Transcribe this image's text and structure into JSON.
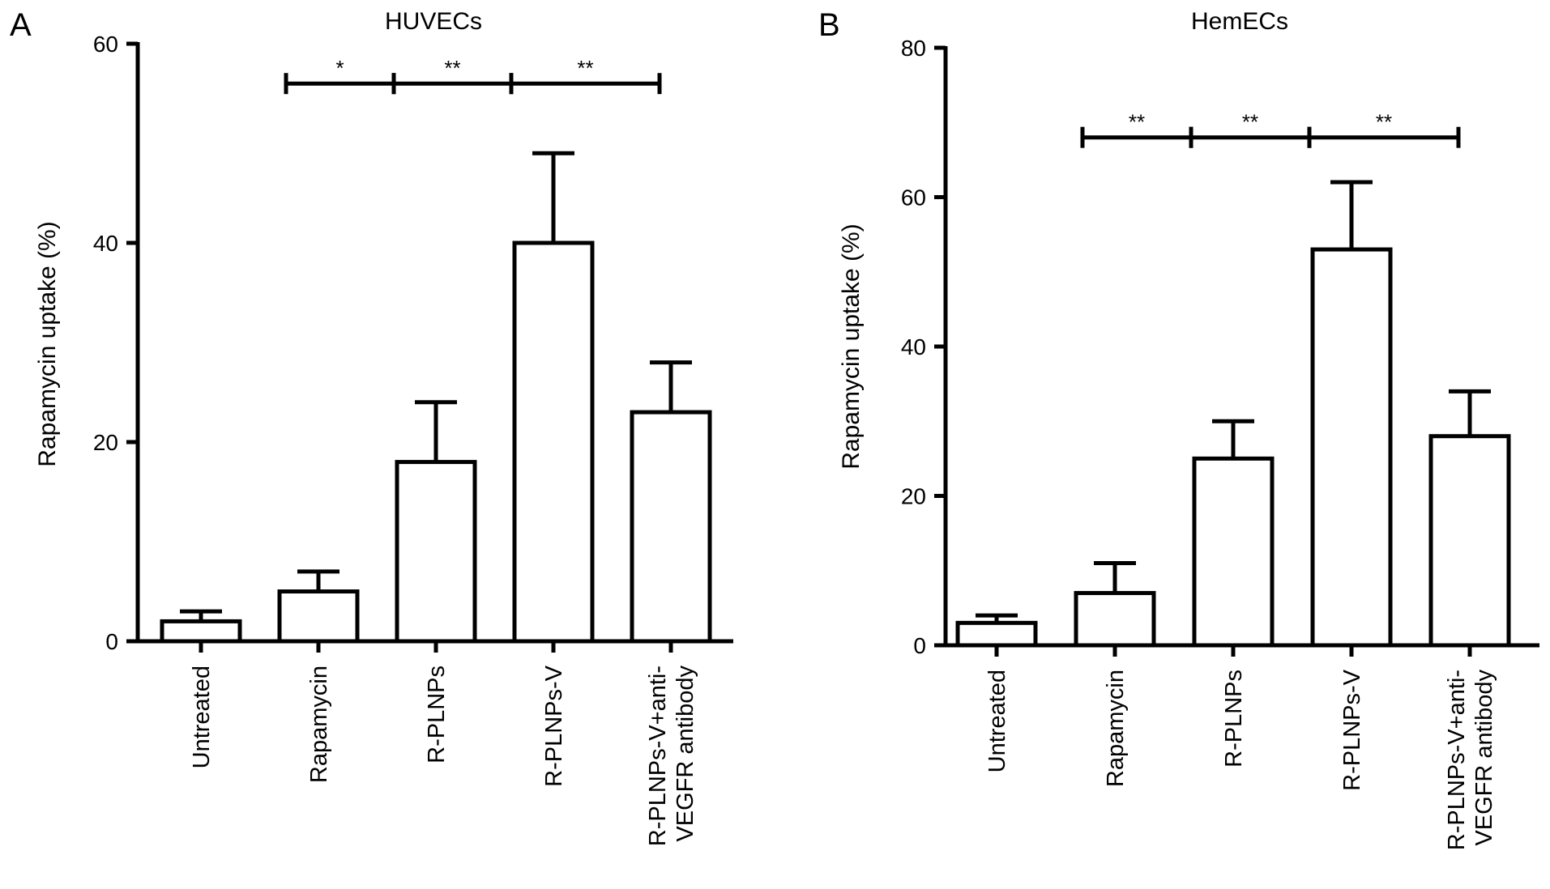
{
  "chart_data": [
    {
      "panel": "A",
      "type": "bar",
      "title": "HUVECs",
      "xlabel": "",
      "ylabel": "Rapamycin uptake (%)",
      "ylim": [
        0,
        60
      ],
      "yticks": [
        0,
        20,
        40,
        60
      ],
      "categories": [
        [
          "Untreated"
        ],
        [
          "Rapamycin"
        ],
        [
          "R-PLNPs"
        ],
        [
          "R-PLNPs-V"
        ],
        [
          "R-PLNPs-V+anti-",
          "VEGFR antibody"
        ]
      ],
      "values": [
        2,
        5,
        18,
        40,
        23
      ],
      "error_upper": [
        3,
        7,
        24,
        49,
        28
      ],
      "significance": [
        {
          "from": 1,
          "to": 2,
          "label": "*",
          "y": 56
        },
        {
          "from": 2,
          "to": 3,
          "label": "**",
          "y": 56
        },
        {
          "from": 3,
          "to": 4,
          "label": "**",
          "y": 56
        }
      ],
      "grid": false
    },
    {
      "panel": "B",
      "type": "bar",
      "title": "HemECs",
      "xlabel": "",
      "ylabel": "Rapamycin uptake (%)",
      "ylim": [
        0,
        80
      ],
      "yticks": [
        0,
        20,
        40,
        60,
        80
      ],
      "categories": [
        [
          "Untreated"
        ],
        [
          "Rapamycin"
        ],
        [
          "R-PLNPs"
        ],
        [
          "R-PLNPs-V"
        ],
        [
          "R-PLNPs-V+anti-",
          "VEGFR antibody"
        ]
      ],
      "values": [
        3,
        7,
        25,
        53,
        28
      ],
      "error_upper": [
        4,
        11,
        30,
        62,
        34
      ],
      "significance": [
        {
          "from": 1,
          "to": 2,
          "label": "**",
          "y": 68
        },
        {
          "from": 2,
          "to": 3,
          "label": "**",
          "y": 68
        },
        {
          "from": 3,
          "to": 4,
          "label": "**",
          "y": 68
        }
      ],
      "grid": false
    }
  ]
}
